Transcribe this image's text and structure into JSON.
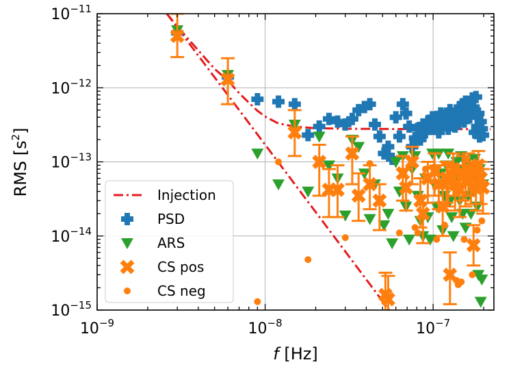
{
  "chart_data": {
    "type": "scatter",
    "xscale": "log",
    "yscale": "log",
    "xlim": [
      1e-09,
      2.3e-07
    ],
    "ylim": [
      1e-15,
      1e-11
    ],
    "grid": true,
    "xlabel": "f [Hz]",
    "ylabel": "RMS [s²]",
    "xticks": [
      {
        "value": 1e-09,
        "base": "10",
        "exp": "−9"
      },
      {
        "value": 1e-08,
        "base": "10",
        "exp": "−8"
      },
      {
        "value": 1e-07,
        "base": "10",
        "exp": "−7"
      }
    ],
    "yticks": [
      {
        "value": 1e-15,
        "base": "10",
        "exp": "−15"
      },
      {
        "value": 1e-14,
        "base": "10",
        "exp": "−14"
      },
      {
        "value": 1e-13,
        "base": "10",
        "exp": "−13"
      },
      {
        "value": 1e-12,
        "base": "10",
        "exp": "−12"
      },
      {
        "value": 1e-11,
        "base": "10",
        "exp": "−11"
      }
    ],
    "legend_position": "lower-left",
    "legend": [
      "Injection",
      "PSD",
      "ARS",
      "CS pos",
      "CS neg"
    ],
    "series": [
      {
        "name": "Injection",
        "kind": "line",
        "marker": "dashdot",
        "color": "#e41a1c",
        "points": [
          [
            2.6e-09,
            1e-11
          ],
          [
            3e-09,
            6.7e-12
          ],
          [
            4e-09,
            3.2e-12
          ],
          [
            5e-09,
            1.8e-12
          ],
          [
            6e-09,
            1.25e-12
          ],
          [
            7e-09,
            8.5e-13
          ],
          [
            8e-09,
            6.3e-13
          ],
          [
            9e-09,
            4.9e-13
          ],
          [
            1e-08,
            4.1e-13
          ],
          [
            1.2e-08,
            3.3e-13
          ],
          [
            1.5e-08,
            3e-13
          ],
          [
            2e-08,
            2.85e-13
          ],
          [
            3e-08,
            2.8e-13
          ],
          [
            5e-08,
            2.78e-13
          ],
          [
            1e-07,
            2.77e-13
          ],
          [
            2.2e-07,
            2.77e-13
          ]
        ]
      },
      {
        "name": "Injection (power law)",
        "kind": "line",
        "marker": "dashdot",
        "color": "#e41a1c",
        "points": [
          [
            2.6e-09,
            1e-11
          ],
          [
            5.9e-08,
            8e-16
          ]
        ]
      },
      {
        "name": "PSD",
        "kind": "scatter",
        "marker": "plus",
        "color": "#1f77b4",
        "points": [
          [
            3e-09,
            5.5e-12
          ],
          [
            6e-09,
            1.4e-12
          ],
          [
            9e-09,
            7e-13
          ],
          [
            1.2e-08,
            6.5e-13
          ],
          [
            1.5e-08,
            6e-13
          ],
          [
            1.8e-08,
            2.3e-13
          ],
          [
            2.1e-08,
            3e-13
          ],
          [
            2.4e-08,
            3.8e-13
          ],
          [
            2.7e-08,
            3.5e-13
          ],
          [
            3e-08,
            3.2e-13
          ],
          [
            3.3e-08,
            3.8e-13
          ],
          [
            3.6e-08,
            5e-13
          ],
          [
            3.9e-08,
            5.5e-13
          ],
          [
            4.2e-08,
            6e-13
          ],
          [
            4.5e-08,
            3.2e-13
          ],
          [
            4.8e-08,
            2.2e-13
          ],
          [
            5.1e-08,
            1.3e-13
          ],
          [
            5.4e-08,
            1.6e-13
          ],
          [
            5.7e-08,
            1.1e-13
          ],
          [
            6e-08,
            4e-13
          ],
          [
            6.3e-08,
            2.2e-13
          ],
          [
            6.6e-08,
            6e-13
          ],
          [
            6.9e-08,
            4.5e-13
          ],
          [
            7.2e-08,
            3e-13
          ],
          [
            7.5e-08,
            1.6e-13
          ],
          [
            7.8e-08,
            2.1e-13
          ],
          [
            8.1e-08,
            2.8e-13
          ],
          [
            8.4e-08,
            2e-13
          ],
          [
            8.7e-08,
            3.2e-13
          ],
          [
            9e-08,
            2.5e-13
          ],
          [
            9.3e-08,
            3.5e-13
          ],
          [
            9.6e-08,
            2.8e-13
          ],
          [
            9.9e-08,
            4e-13
          ],
          [
            1.02e-07,
            3e-13
          ],
          [
            1.05e-07,
            3.8e-13
          ],
          [
            1.08e-07,
            2.5e-13
          ],
          [
            1.11e-07,
            4.5e-13
          ],
          [
            1.14e-07,
            3.2e-13
          ],
          [
            1.17e-07,
            4.2e-13
          ],
          [
            1.2e-07,
            3.5e-13
          ],
          [
            1.23e-07,
            2.8e-13
          ],
          [
            1.26e-07,
            5e-13
          ],
          [
            1.29e-07,
            3.2e-13
          ],
          [
            1.32e-07,
            4e-13
          ],
          [
            1.35e-07,
            3e-13
          ],
          [
            1.38e-07,
            4.6e-13
          ],
          [
            1.41e-07,
            3.3e-13
          ],
          [
            1.44e-07,
            5.5e-13
          ],
          [
            1.47e-07,
            4.1e-13
          ],
          [
            1.5e-07,
            6e-13
          ],
          [
            1.53e-07,
            3.5e-13
          ],
          [
            1.56e-07,
            6.5e-13
          ],
          [
            1.59e-07,
            4.5e-13
          ],
          [
            1.62e-07,
            5e-13
          ],
          [
            1.65e-07,
            4e-13
          ],
          [
            1.68e-07,
            4.8e-13
          ],
          [
            1.71e-07,
            7.2e-13
          ],
          [
            1.74e-07,
            5.5e-13
          ],
          [
            1.77e-07,
            2.5e-13
          ],
          [
            1.8e-07,
            7.5e-13
          ],
          [
            1.83e-07,
            3e-13
          ],
          [
            1.86e-07,
            4.5e-13
          ],
          [
            1.89e-07,
            2.2e-13
          ],
          [
            1.92e-07,
            3.5e-13
          ],
          [
            1.95e-07,
            2.8e-13
          ],
          [
            1.98e-07,
            2.3e-13
          ]
        ]
      },
      {
        "name": "ARS",
        "kind": "scatter",
        "marker": "triangle-down",
        "color": "#2ca02c",
        "points": [
          [
            3e-09,
            6e-12
          ],
          [
            6e-09,
            1.5e-12
          ],
          [
            9e-09,
            1.3e-13
          ],
          [
            1.2e-08,
            5e-14
          ],
          [
            1.5e-08,
            3.2e-13
          ],
          [
            1.8e-08,
            4e-14
          ],
          [
            2.1e-08,
            2.2e-13
          ],
          [
            2.4e-08,
            9e-14
          ],
          [
            2.7e-08,
            6e-14
          ],
          [
            3e-08,
            1.9e-14
          ],
          [
            3.3e-08,
            2e-13
          ],
          [
            3.6e-08,
            1.6e-13
          ],
          [
            3.9e-08,
            7e-14
          ],
          [
            4.2e-08,
            1.7e-14
          ],
          [
            4.5e-08,
            5e-14
          ],
          [
            4.8e-08,
            3e-14
          ],
          [
            5.1e-08,
            1.4e-14
          ],
          [
            5.4e-08,
            2e-14
          ],
          [
            5.7e-08,
            8e-15
          ],
          [
            6e-08,
            1e-13
          ],
          [
            6.3e-08,
            4e-14
          ],
          [
            6.6e-08,
            1.2e-13
          ],
          [
            6.9e-08,
            2.5e-14
          ],
          [
            7.2e-08,
            9e-15
          ],
          [
            7.5e-08,
            8e-14
          ],
          [
            7.8e-08,
            1.2e-13
          ],
          [
            8.1e-08,
            3.5e-14
          ],
          [
            8.4e-08,
            1.6e-14
          ],
          [
            8.7e-08,
            1e-14
          ],
          [
            9e-08,
            6e-14
          ],
          [
            9.3e-08,
            1.8e-14
          ],
          [
            9.6e-08,
            9e-15
          ],
          [
            9.9e-08,
            1.3e-13
          ],
          [
            1.02e-07,
            5e-14
          ],
          [
            1.05e-07,
            2.5e-14
          ],
          [
            1.08e-07,
            1.3e-13
          ],
          [
            1.11e-07,
            7e-14
          ],
          [
            1.14e-07,
            1.2e-14
          ],
          [
            1.17e-07,
            3.5e-14
          ],
          [
            1.2e-07,
            9e-14
          ],
          [
            1.23e-07,
            1.3e-13
          ],
          [
            1.26e-07,
            3e-14
          ],
          [
            1.29e-07,
            1.8e-14
          ],
          [
            1.32e-07,
            1e-14
          ],
          [
            1.35e-07,
            5e-14
          ],
          [
            1.38e-07,
            1e-13
          ],
          [
            1.41e-07,
            6e-14
          ],
          [
            1.44e-07,
            3e-14
          ],
          [
            1.47e-07,
            1.2e-13
          ],
          [
            1.5e-07,
            2e-14
          ],
          [
            1.53e-07,
            8e-14
          ],
          [
            1.56e-07,
            1.3e-14
          ],
          [
            1.59e-07,
            1e-13
          ],
          [
            1.62e-07,
            3.5e-14
          ],
          [
            1.65e-07,
            7e-14
          ],
          [
            1.68e-07,
            2e-14
          ],
          [
            1.71e-07,
            8.5e-14
          ],
          [
            1.74e-07,
            4e-14
          ],
          [
            1.77e-07,
            1.1e-13
          ],
          [
            1.8e-07,
            6e-14
          ],
          [
            1.83e-07,
            2.5e-14
          ],
          [
            1.86e-07,
            3e-15
          ],
          [
            1.89e-07,
            8e-14
          ],
          [
            1.92e-07,
            1.3e-15
          ],
          [
            1.95e-07,
            2.6e-15
          ],
          [
            1.98e-07,
            5e-14
          ]
        ]
      },
      {
        "name": "CS pos",
        "kind": "scatter",
        "marker": "x-filled",
        "color": "#ff7f0e",
        "points": [
          [
            3e-09,
            5e-12,
            2.6e-12,
            1e-11
          ],
          [
            6e-09,
            1.3e-12,
            6e-13,
            2.5e-12
          ],
          [
            1.5e-08,
            2.5e-13,
            1.2e-13,
            5e-13
          ],
          [
            2.1e-08,
            1e-13,
            3.5e-14,
            1.7e-13
          ],
          [
            2.4e-08,
            4.2e-14,
            1.8e-14,
            8e-14
          ],
          [
            2.7e-08,
            4.2e-14,
            1.8e-14,
            9e-14
          ],
          [
            3.3e-08,
            1.3e-13,
            5e-14,
            2.2e-13
          ],
          [
            3.6e-08,
            3.5e-14,
            1.6e-14,
            7e-14
          ],
          [
            4.2e-08,
            5e-14,
            2.3e-14,
            9e-14
          ],
          [
            4.8e-08,
            3e-14,
            1.2e-14,
            5e-14
          ],
          [
            5.2e-08,
            1.6e-15,
            8e-16,
            3.2e-15
          ],
          [
            5.4e-08,
            1.4e-15,
            7e-16,
            2.9e-15
          ],
          [
            6.6e-08,
            7e-14,
            3e-14,
            1.2e-13
          ],
          [
            6.9e-08,
            4.5e-14,
            2.2e-14,
            8e-14
          ],
          [
            7.5e-08,
            1e-13,
            5e-14,
            1.6e-13
          ],
          [
            8.4e-08,
            3e-14,
            1.3e-14,
            6e-14
          ],
          [
            8.7e-08,
            2e-14,
            8e-15,
            3.5e-14
          ],
          [
            9.3e-08,
            6e-14,
            2.8e-14,
            1e-13
          ],
          [
            1.02e-07,
            7.5e-14,
            3.5e-14,
            1.3e-13
          ],
          [
            1.08e-07,
            5e-14,
            2.3e-14,
            9e-14
          ],
          [
            1.14e-07,
            2.5e-14,
            1e-14,
            4.5e-14
          ],
          [
            1.2e-07,
            6e-14,
            2.8e-14,
            1e-13
          ],
          [
            1.23e-07,
            5.5e-14,
            2.5e-14,
            9.5e-14
          ],
          [
            1.26e-07,
            3e-15,
            1.2e-15,
            6e-15
          ],
          [
            1.32e-07,
            8e-14,
            3.5e-14,
            1.3e-13
          ],
          [
            1.35e-07,
            5e-14,
            2.2e-14,
            9e-14
          ],
          [
            1.44e-07,
            4.2e-14,
            1.8e-14,
            7e-14
          ],
          [
            1.5e-07,
            7e-14,
            3e-14,
            1.2e-13
          ],
          [
            1.56e-07,
            5.5e-14,
            2.5e-14,
            9e-14
          ],
          [
            1.62e-07,
            8e-14,
            3.5e-14,
            1.3e-13
          ],
          [
            1.68e-07,
            6e-14,
            2.7e-14,
            1e-13
          ],
          [
            1.74e-07,
            7.5e-15,
            4e-15,
            1.4e-14
          ],
          [
            1.8e-07,
            5e-14,
            2.2e-14,
            9e-14
          ],
          [
            1.86e-07,
            9e-14,
            4e-14,
            1.4e-13
          ],
          [
            1.92e-07,
            6e-14,
            2.7e-14,
            1e-13
          ],
          [
            1.98e-07,
            4.5e-14,
            2e-14,
            8e-14
          ]
        ]
      },
      {
        "name": "CS neg",
        "kind": "scatter",
        "marker": "dot",
        "color": "#ff7f0e",
        "points": [
          [
            9e-09,
            1.3e-15
          ],
          [
            1.2e-08,
            1e-13
          ],
          [
            1.8e-08,
            4.8e-15
          ],
          [
            3e-08,
            9.5e-15
          ],
          [
            4.2e-08,
            9.5e-14
          ],
          [
            6.3e-08,
            1.1e-14
          ],
          [
            7.8e-08,
            1.3e-14
          ],
          [
            8.1e-08,
            1.1e-14
          ],
          [
            9e-08,
            8e-14
          ],
          [
            1.05e-07,
            9e-15
          ],
          [
            1.17e-07,
            1.4e-14
          ],
          [
            1.29e-07,
            6e-14
          ],
          [
            1.38e-07,
            2.5e-15
          ],
          [
            1.41e-07,
            2.2e-15
          ],
          [
            1.47e-07,
            2.4e-15
          ],
          [
            1.53e-07,
            9e-15
          ],
          [
            1.59e-07,
            1.1e-13
          ],
          [
            1.65e-07,
            7e-14
          ],
          [
            1.71e-07,
            3e-15
          ],
          [
            1.77e-07,
            4e-14
          ],
          [
            1.83e-07,
            1.2e-14
          ],
          [
            1.89e-07,
            8e-14
          ],
          [
            1.95e-07,
            1.6e-14
          ]
        ]
      }
    ]
  }
}
